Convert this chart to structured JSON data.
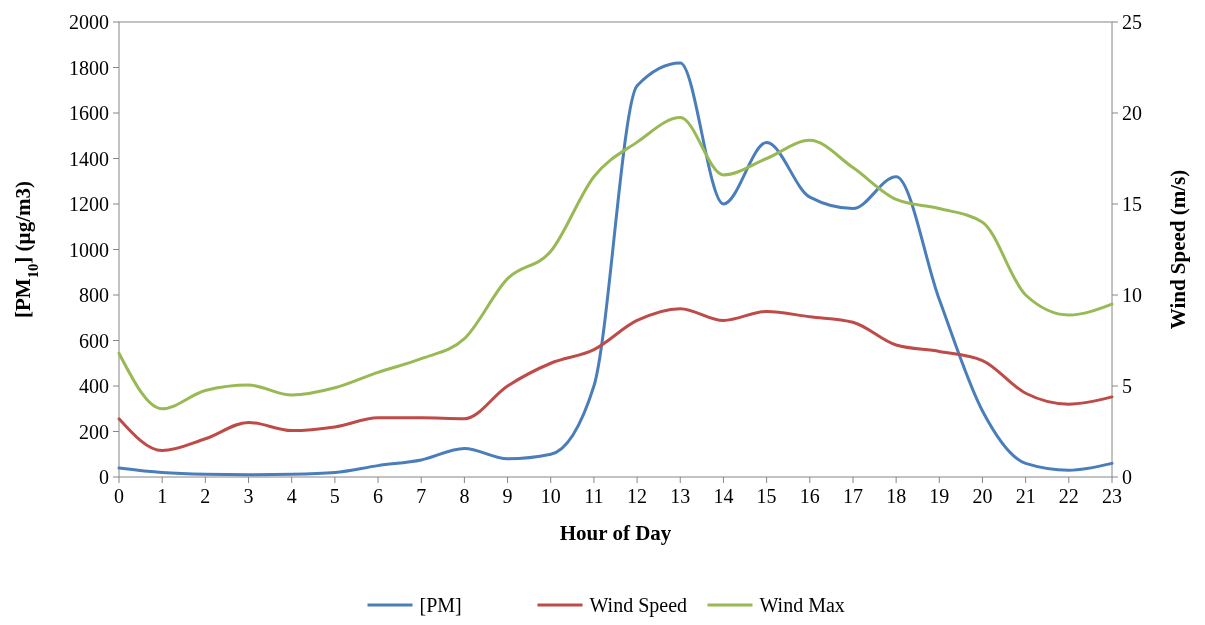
{
  "chart_data": {
    "type": "line",
    "xlabel": "Hour of Day",
    "ylabel": "[PM$_{10}$] (µg/m3)",
    "y2label": "Wind Speed (m/s)",
    "x": [
      0,
      1,
      2,
      3,
      4,
      5,
      6,
      7,
      8,
      9,
      10,
      11,
      12,
      13,
      14,
      15,
      16,
      17,
      18,
      19,
      20,
      21,
      22,
      23
    ],
    "xlim": [
      0,
      23
    ],
    "xticks": [
      0,
      1,
      2,
      3,
      4,
      5,
      6,
      7,
      8,
      9,
      10,
      11,
      12,
      13,
      14,
      15,
      16,
      17,
      18,
      19,
      20,
      21,
      22,
      23
    ],
    "ylim": [
      0,
      2000
    ],
    "yticks": [
      0,
      200,
      400,
      600,
      800,
      1000,
      1200,
      1400,
      1600,
      1800,
      2000
    ],
    "y2lim": [
      0,
      25
    ],
    "y2ticks": [
      0,
      5,
      10,
      15,
      20,
      25
    ],
    "grid": false,
    "legend": "bottom",
    "marker": "none",
    "line_style": "solid",
    "series": [
      {
        "name": "[PM]",
        "color": "#4a7ebb",
        "values": [
          40,
          20,
          12,
          10,
          12,
          20,
          50,
          75,
          125,
          80,
          100,
          400,
          1720,
          1820,
          1200,
          1470,
          1230,
          1180,
          1320,
          780,
          290,
          60,
          30,
          60
        ]
      },
      {
        "name": "Wind Speed",
        "color": "#be4b48",
        "axis": "y2",
        "values": [
          3.2,
          1.45,
          2.1,
          3.0,
          2.55,
          2.75,
          3.25,
          3.25,
          3.2,
          5.0,
          6.25,
          7.0,
          8.6,
          9.25,
          8.6,
          9.1,
          8.8,
          8.5,
          7.25,
          6.9,
          6.4,
          4.6,
          4.0,
          4.4
        ]
      },
      {
        "name": "Wind Max",
        "color": "#98b954",
        "axis": "y2",
        "values": [
          6.8,
          3.75,
          4.75,
          5.05,
          4.5,
          4.9,
          5.75,
          6.5,
          7.6,
          10.9,
          12.4,
          16.5,
          18.4,
          19.75,
          16.6,
          17.5,
          18.5,
          17.0,
          15.25,
          14.75,
          14.0,
          10.0,
          8.9,
          9.5
        ]
      }
    ]
  }
}
